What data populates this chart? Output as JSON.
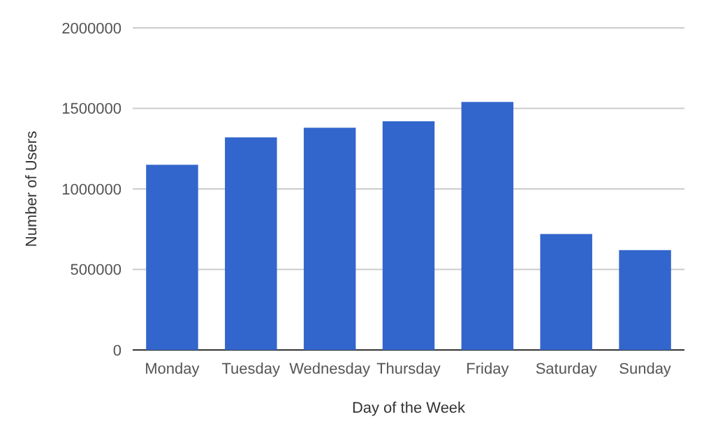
{
  "chart_data": {
    "type": "bar",
    "xlabel": "Day of the Week",
    "ylabel": "Number of Users",
    "categories": [
      "Monday",
      "Tuesday",
      "Wednesday",
      "Thursday",
      "Friday",
      "Saturday",
      "Sunday"
    ],
    "values": [
      1150000,
      1320000,
      1380000,
      1420000,
      1540000,
      720000,
      620000
    ],
    "color": "#3366cc",
    "ylim": [
      0,
      2000000
    ],
    "yticks": [
      0,
      500000,
      1000000,
      1500000,
      2000000
    ],
    "grid": true
  }
}
